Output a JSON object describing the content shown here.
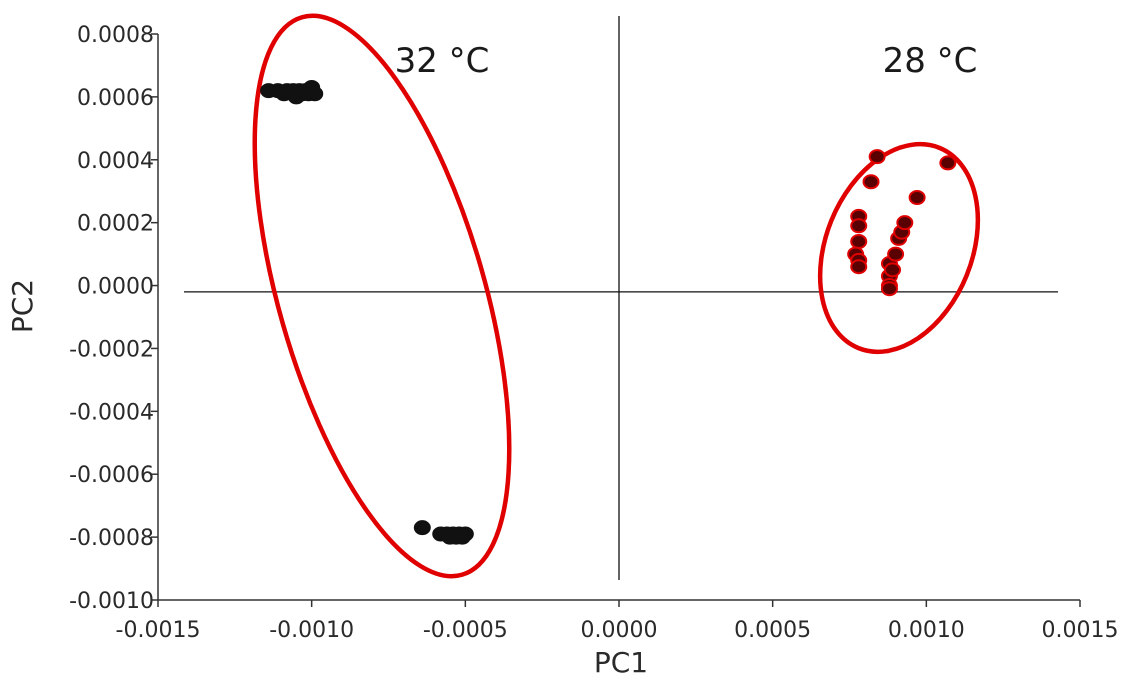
{
  "chart_data": {
    "type": "scatter",
    "title": "",
    "xlabel": "PC1",
    "ylabel": "PC2",
    "xlim": [
      -0.0015,
      0.0015
    ],
    "ylim": [
      -0.001,
      0.0008
    ],
    "xticks": [
      -0.0015,
      -0.001,
      -0.0005,
      0,
      0.0005,
      0.001,
      0.0015
    ],
    "xtick_labels": [
      "-0.0015",
      "-0.0010",
      "-0.0005",
      "0.0000",
      "0.0005",
      "0.0010",
      "0.0015"
    ],
    "yticks": [
      -0.001,
      -0.0008,
      -0.0006,
      -0.0004,
      -0.0002,
      0,
      0.0002,
      0.0004,
      0.0006,
      0.0008
    ],
    "ytick_labels": [
      "-0.0010",
      "-0.0008",
      "-0.0006",
      "-0.0004",
      "-0.0002",
      "0.0000",
      "0.0002",
      "0.0004",
      "0.0006",
      "0.0008"
    ],
    "grid": false,
    "reference_lines": {
      "x": 0,
      "y": -2e-05
    },
    "annotations": [
      "32 °C",
      "28 °C"
    ],
    "series": [
      {
        "color": "#111111",
        "edge_color": "#111111",
        "points": [
          [
            -0.00114,
            0.00062
          ],
          [
            -0.00111,
            0.00062
          ],
          [
            -0.00109,
            0.00061
          ],
          [
            -0.00108,
            0.00062
          ],
          [
            -0.00106,
            0.00062
          ],
          [
            -0.00105,
            0.0006
          ],
          [
            -0.00104,
            0.00062
          ],
          [
            -0.00103,
            0.00061
          ],
          [
            -0.00102,
            0.00062
          ],
          [
            -0.00101,
            0.00061
          ],
          [
            -0.001,
            0.00063
          ],
          [
            -0.00099,
            0.00061
          ],
          [
            -0.00064,
            -0.00077
          ],
          [
            -0.00058,
            -0.00079
          ],
          [
            -0.00056,
            -0.00079
          ],
          [
            -0.00055,
            -0.0008
          ],
          [
            -0.00054,
            -0.00079
          ],
          [
            -0.00053,
            -0.0008
          ],
          [
            -0.00052,
            -0.00079
          ],
          [
            -0.00051,
            -0.0008
          ],
          [
            -0.0005,
            -0.00079
          ]
        ]
      },
      {
        "color": "#5a0000",
        "edge_color": "#e00000",
        "points": [
          [
            0.00078,
            0.00022
          ],
          [
            0.00078,
            0.00019
          ],
          [
            0.00078,
            0.00014
          ],
          [
            0.00077,
            0.0001
          ],
          [
            0.00078,
            8e-05
          ],
          [
            0.00078,
            6e-05
          ],
          [
            0.00082,
            0.00033
          ],
          [
            0.00084,
            0.00041
          ],
          [
            0.00088,
            7e-05
          ],
          [
            0.00088,
            3e-05
          ],
          [
            0.00088,
            0.0
          ],
          [
            0.00088,
            -1e-05
          ],
          [
            0.00089,
            5e-05
          ],
          [
            0.0009,
            0.0001
          ],
          [
            0.00091,
            0.00015
          ],
          [
            0.00092,
            0.00017
          ],
          [
            0.00093,
            0.0002
          ],
          [
            0.00097,
            0.00028
          ],
          [
            0.00107,
            0.00039
          ]
        ]
      }
    ]
  }
}
